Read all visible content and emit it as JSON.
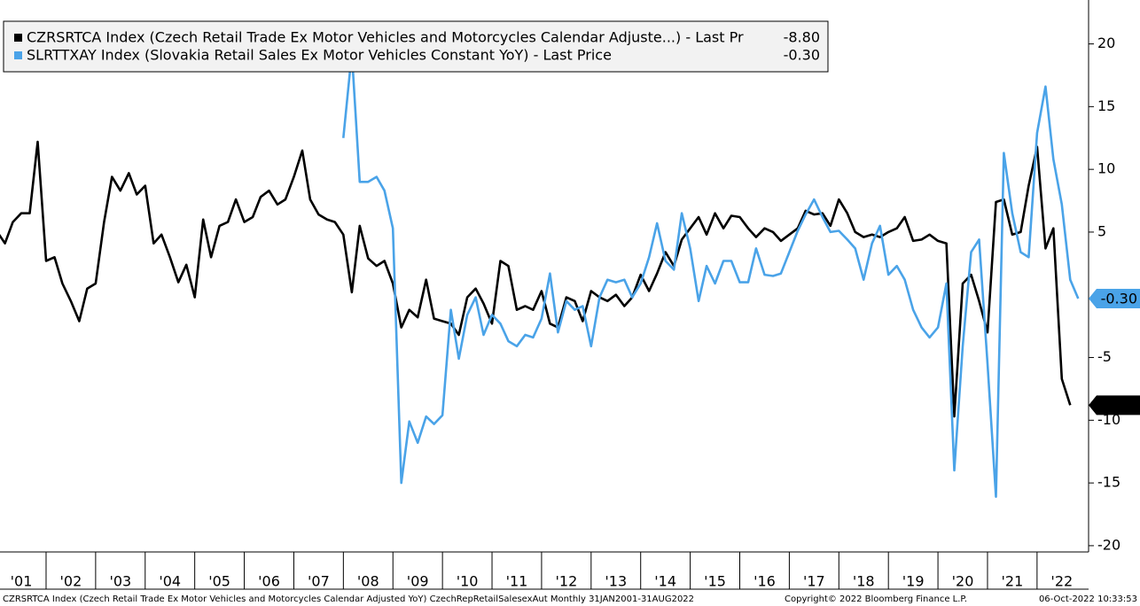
{
  "chart_data": {
    "type": "line",
    "x": [
      2001,
      2001.17,
      2001.33,
      2001.5,
      2001.67,
      2001.83,
      2002,
      2002.17,
      2002.33,
      2002.5,
      2002.67,
      2002.83,
      2003,
      2003.17,
      2003.33,
      2003.5,
      2003.67,
      2003.83,
      2004,
      2004.17,
      2004.33,
      2004.5,
      2004.67,
      2004.83,
      2005,
      2005.17,
      2005.33,
      2005.5,
      2005.67,
      2005.83,
      2006,
      2006.17,
      2006.33,
      2006.5,
      2006.67,
      2006.83,
      2007,
      2007.17,
      2007.33,
      2007.5,
      2007.67,
      2007.83,
      2008,
      2008.17,
      2008.33,
      2008.5,
      2008.67,
      2008.83,
      2009,
      2009.17,
      2009.33,
      2009.5,
      2009.67,
      2009.83,
      2010,
      2010.17,
      2010.33,
      2010.5,
      2010.67,
      2010.83,
      2011,
      2011.17,
      2011.33,
      2011.5,
      2011.67,
      2011.83,
      2012,
      2012.17,
      2012.33,
      2012.5,
      2012.67,
      2012.83,
      2013,
      2013.17,
      2013.33,
      2013.5,
      2013.67,
      2013.83,
      2014,
      2014.17,
      2014.33,
      2014.5,
      2014.67,
      2014.83,
      2015,
      2015.17,
      2015.33,
      2015.5,
      2015.67,
      2015.83,
      2016,
      2016.17,
      2016.33,
      2016.5,
      2016.67,
      2016.83,
      2017,
      2017.17,
      2017.33,
      2017.5,
      2017.67,
      2017.83,
      2018,
      2018.17,
      2018.33,
      2018.5,
      2018.67,
      2018.83,
      2019,
      2019.17,
      2019.33,
      2019.5,
      2019.67,
      2019.83,
      2020,
      2020.17,
      2020.33,
      2020.5,
      2020.67,
      2020.83,
      2021,
      2021.17,
      2021.33,
      2021.5,
      2021.67,
      2021.83,
      2022,
      2022.17,
      2022.33,
      2022.5,
      2022.67,
      2022.83
    ],
    "series": [
      {
        "name": "CZRSRTCA Index (Czech Retail Trade Ex Motor Vehicles and Motorcycles Calendar Adjuste...) - Last Pr",
        "color": "#000000",
        "last_label": "-8.80",
        "values": [
          5.1,
          4.1,
          5.8,
          6.5,
          6.5,
          12.2,
          2.7,
          3.0,
          0.9,
          -0.5,
          -2.1,
          0.5,
          0.9,
          5.8,
          9.4,
          8.3,
          9.7,
          8.0,
          8.7,
          4.1,
          4.8,
          3.0,
          1.0,
          2.4,
          -0.2,
          6.0,
          3.0,
          5.5,
          5.8,
          7.6,
          5.8,
          6.2,
          7.8,
          8.3,
          7.2,
          7.6,
          9.4,
          11.5,
          7.6,
          6.4,
          6.0,
          5.8,
          4.8,
          0.2,
          5.5,
          2.9,
          2.3,
          2.7,
          0.9,
          -2.6,
          -1.2,
          -1.8,
          1.2,
          -1.9,
          -2.1,
          -2.3,
          -3.2,
          -0.2,
          0.5,
          -0.7,
          -2.3,
          2.7,
          2.3,
          -1.2,
          -0.9,
          -1.2,
          0.3,
          -2.3,
          -2.6,
          -0.2,
          -0.5,
          -2.1,
          0.3,
          -0.2,
          -0.5,
          0.0,
          -0.9,
          -0.2,
          1.6,
          0.3,
          1.7,
          3.4,
          2.3,
          4.4,
          5.3,
          6.2,
          4.8,
          6.5,
          5.3,
          6.3,
          6.2,
          5.3,
          4.6,
          5.3,
          5.0,
          4.3,
          4.8,
          5.3,
          6.7,
          6.4,
          6.5,
          5.5,
          7.6,
          6.5,
          5.0,
          4.6,
          4.8,
          4.6,
          5.0,
          5.3,
          6.2,
          4.3,
          4.4,
          4.8,
          4.3,
          4.1,
          -9.7,
          0.9,
          1.6,
          -0.5,
          -3.0,
          7.4,
          7.6,
          4.8,
          5.0,
          8.7,
          11.8,
          3.7,
          5.3,
          -6.7,
          -8.8,
          null
        ]
      },
      {
        "name": "SLRTTXAY Index (Slovakia Retail Sales Ex Motor Vehicles Constant YoY) - Last Price",
        "color": "#4aa3e8",
        "last_label": "-0.30",
        "values": [
          null,
          null,
          null,
          null,
          null,
          null,
          null,
          null,
          null,
          null,
          null,
          null,
          null,
          null,
          null,
          null,
          null,
          null,
          null,
          null,
          null,
          null,
          null,
          null,
          null,
          null,
          null,
          null,
          null,
          null,
          null,
          null,
          null,
          null,
          null,
          null,
          null,
          null,
          null,
          null,
          null,
          null,
          12.5,
          19.3,
          9.0,
          9.0,
          9.4,
          8.3,
          5.3,
          -15.0,
          -10.1,
          -11.8,
          -9.7,
          -10.3,
          -9.6,
          -1.2,
          -5.1,
          -1.6,
          -0.2,
          -3.2,
          -1.6,
          -2.3,
          -3.7,
          -4.1,
          -3.2,
          -3.4,
          -1.9,
          1.7,
          -3.0,
          -0.5,
          -1.2,
          -0.9,
          -4.1,
          -0.2,
          1.2,
          1.0,
          1.2,
          -0.2,
          0.9,
          3.0,
          5.7,
          2.7,
          2.0,
          6.5,
          3.7,
          -0.5,
          2.3,
          0.9,
          2.7,
          2.7,
          1.0,
          1.0,
          3.7,
          1.6,
          1.5,
          1.7,
          3.4,
          5.1,
          6.4,
          7.6,
          6.2,
          5.0,
          5.1,
          4.4,
          3.7,
          1.2,
          4.1,
          5.5,
          1.6,
          2.3,
          1.2,
          -1.2,
          -2.6,
          -3.4,
          -2.6,
          0.9,
          -14.0,
          -4.1,
          3.4,
          4.4,
          -5.5,
          -16.1,
          11.3,
          6.5,
          3.4,
          3.0,
          12.9,
          16.6,
          10.8,
          7.2,
          1.2,
          -0.3
        ]
      }
    ],
    "xlim": [
      2001.07,
      2023.04
    ],
    "xticks": [
      {
        "value": 2001,
        "label": "'01"
      },
      {
        "value": 2002,
        "label": "'02"
      },
      {
        "value": 2003,
        "label": "'03"
      },
      {
        "value": 2004,
        "label": "'04"
      },
      {
        "value": 2005,
        "label": "'05"
      },
      {
        "value": 2006,
        "label": "'06"
      },
      {
        "value": 2007,
        "label": "'07"
      },
      {
        "value": 2008,
        "label": "'08"
      },
      {
        "value": 2009,
        "label": "'09"
      },
      {
        "value": 2010,
        "label": "'10"
      },
      {
        "value": 2011,
        "label": "'11"
      },
      {
        "value": 2012,
        "label": "'12"
      },
      {
        "value": 2013,
        "label": "'13"
      },
      {
        "value": 2014,
        "label": "'14"
      },
      {
        "value": 2015,
        "label": "'15"
      },
      {
        "value": 2016,
        "label": "'16"
      },
      {
        "value": 2017,
        "label": "'17"
      },
      {
        "value": 2018,
        "label": "'18"
      },
      {
        "value": 2019,
        "label": "'19"
      },
      {
        "value": 2020,
        "label": "'20"
      },
      {
        "value": 2021,
        "label": "'21"
      },
      {
        "value": 2022,
        "label": "'22"
      }
    ],
    "ylim": [
      -20.5,
      23.5
    ],
    "yticks": [
      20,
      15,
      10,
      5,
      -5,
      -10,
      -15,
      -20
    ],
    "footer": {
      "description": "CZRSRTCA Index (Czech Retail Trade Ex Motor Vehicles and Motorcycles Calendar Adjusted YoY) CzechRepRetailSalesexAut  Monthly 31JAN2001-31AUG2022",
      "copyright": "Copyright© 2022 Bloomberg Finance L.P.",
      "timestamp": "06-Oct-2022 10:33:53"
    }
  }
}
